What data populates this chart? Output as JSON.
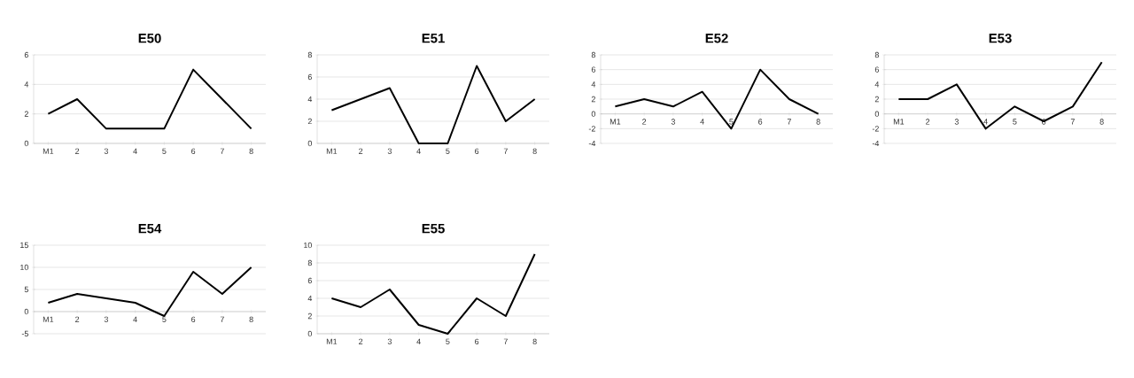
{
  "chart_data": [
    {
      "type": "line",
      "title": "E50",
      "categories": [
        "M1",
        "2",
        "3",
        "4",
        "5",
        "6",
        "7",
        "8"
      ],
      "values": [
        2,
        3,
        1,
        1,
        1,
        5,
        3,
        1
      ],
      "color": "#000000",
      "ylim": [
        0,
        6
      ],
      "yticks": [
        0,
        2,
        4,
        6
      ],
      "grid": "y",
      "line_style": "solid"
    },
    {
      "type": "line",
      "title": "E51",
      "categories": [
        "M1",
        "2",
        "3",
        "4",
        "5",
        "6",
        "7",
        "8"
      ],
      "values": [
        3,
        4,
        5,
        0,
        0,
        7,
        2,
        4
      ],
      "color": "#000000",
      "ylim": [
        0,
        8
      ],
      "yticks": [
        0,
        2,
        4,
        6,
        8
      ],
      "grid": "y",
      "line_style": "solid"
    },
    {
      "type": "line",
      "title": "E52",
      "categories": [
        "M1",
        "2",
        "3",
        "4",
        "5",
        "6",
        "7",
        "8"
      ],
      "values": [
        1,
        2,
        1,
        3,
        -2,
        6,
        2,
        0
      ],
      "color": "#000000",
      "ylim": [
        -4,
        8
      ],
      "yticks": [
        -4,
        -2,
        0,
        2,
        4,
        6,
        8
      ],
      "grid": "y",
      "line_style": "solid"
    },
    {
      "type": "line",
      "title": "E53",
      "categories": [
        "M1",
        "2",
        "3",
        "4",
        "5",
        "6",
        "7",
        "8"
      ],
      "values": [
        2,
        2,
        4,
        -2,
        1,
        -1,
        1,
        7
      ],
      "color": "#000000",
      "ylim": [
        -4,
        8
      ],
      "yticks": [
        -4,
        -2,
        0,
        2,
        4,
        6,
        8
      ],
      "grid": "y",
      "line_style": "solid"
    },
    {
      "type": "line",
      "title": "E54",
      "categories": [
        "M1",
        "2",
        "3",
        "4",
        "5",
        "6",
        "7",
        "8"
      ],
      "values": [
        2,
        4,
        3,
        2,
        -1,
        9,
        4,
        10
      ],
      "color": "#000000",
      "ylim": [
        -5,
        15
      ],
      "yticks": [
        -5,
        0,
        5,
        10,
        15
      ],
      "grid": "y",
      "line_style": "solid"
    },
    {
      "type": "line",
      "title": "E55",
      "categories": [
        "M1",
        "2",
        "3",
        "4",
        "5",
        "6",
        "7",
        "8"
      ],
      "values": [
        4,
        3,
        5,
        1,
        0,
        4,
        2,
        9
      ],
      "color": "#000000",
      "ylim": [
        0,
        10
      ],
      "yticks": [
        0,
        2,
        4,
        6,
        8,
        10
      ],
      "grid": "y",
      "line_style": "solid"
    }
  ]
}
